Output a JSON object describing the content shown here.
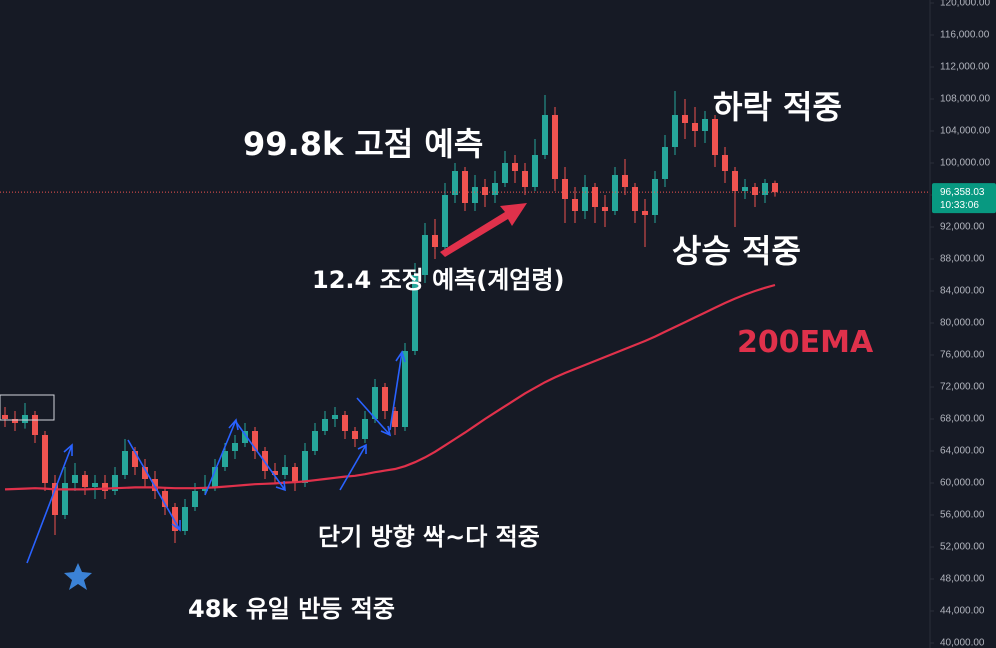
{
  "chart_data": {
    "type": "candlestick",
    "ylim": [
      39375,
      120375
    ],
    "yticks": [
      {
        "value": 40000,
        "label": "40,000.00"
      },
      {
        "value": 44000,
        "label": "44,000.00"
      },
      {
        "value": 48000,
        "label": "48,000.00"
      },
      {
        "value": 52000,
        "label": "52,000.00"
      },
      {
        "value": 56000,
        "label": "56,000.00"
      },
      {
        "value": 60000,
        "label": "60,000.00"
      },
      {
        "value": 64000,
        "label": "64,000.00"
      },
      {
        "value": 68000,
        "label": "68,000.00"
      },
      {
        "value": 72000,
        "label": "72,000.00"
      },
      {
        "value": 76000,
        "label": "76,000.00"
      },
      {
        "value": 80000,
        "label": "80,000.00"
      },
      {
        "value": 84000,
        "label": "84,000.00"
      },
      {
        "value": 88000,
        "label": "88,000.00"
      },
      {
        "value": 92000,
        "label": "92,000.00"
      },
      {
        "value": 96000,
        "label": "96,000.00"
      },
      {
        "value": 100000,
        "label": "100,000.00"
      },
      {
        "value": 104000,
        "label": "104,000.00"
      },
      {
        "value": 108000,
        "label": "108,000.00"
      },
      {
        "value": 112000,
        "label": "112,000.00"
      },
      {
        "value": 116000,
        "label": "116,000.00"
      },
      {
        "value": 120000,
        "label": "120,000.00"
      }
    ],
    "up_color": "#26a69a",
    "down_color": "#ef5350",
    "candles": {
      "open": [
        68500,
        68000,
        67500,
        68500,
        66000,
        60000,
        56000,
        60000,
        61000,
        59500,
        60000,
        59000,
        61000,
        64000,
        62000,
        60500,
        59000,
        57000,
        54000,
        57000,
        59000,
        59500,
        62000,
        64000,
        65000,
        66500,
        64000,
        61500,
        61000,
        62000,
        60000,
        64000,
        66500,
        68000,
        68500,
        66500,
        65500,
        68000,
        72000,
        69000,
        67000,
        76500,
        86000,
        91000,
        89500,
        96000,
        99000,
        95000,
        97000,
        96000,
        97500,
        100000,
        99000,
        97000,
        101000,
        106000,
        98000,
        95500,
        94000,
        97000,
        94500,
        94000,
        98500,
        97000,
        94000,
        93500,
        98000,
        102000,
        106000,
        105000,
        104000,
        105500,
        101000,
        99000,
        96500,
        97000,
        96000,
        97500
      ],
      "high": [
        69500,
        69000,
        70000,
        69000,
        66500,
        61000,
        62000,
        62500,
        61500,
        61000,
        61000,
        62000,
        65500,
        64500,
        63000,
        61500,
        59500,
        57500,
        58000,
        60000,
        61000,
        63000,
        65000,
        66000,
        67500,
        67000,
        64500,
        62500,
        63500,
        62500,
        65000,
        67500,
        69000,
        69500,
        69000,
        67000,
        69000,
        73000,
        72500,
        69500,
        77500,
        87500,
        92500,
        93000,
        97500,
        100000,
        99500,
        98500,
        98000,
        99000,
        101500,
        101000,
        100000,
        103000,
        108500,
        107000,
        99500,
        97000,
        98500,
        97500,
        96000,
        99500,
        100500,
        97500,
        95500,
        99000,
        103500,
        109000,
        108000,
        107000,
        106500,
        106000,
        102000,
        99500,
        98000,
        97500,
        98000,
        97800
      ],
      "low": [
        67000,
        66500,
        66800,
        65000,
        59000,
        53500,
        55500,
        59000,
        58500,
        58000,
        58000,
        58500,
        60500,
        61000,
        59500,
        58000,
        56000,
        52500,
        53500,
        56500,
        58500,
        59000,
        61500,
        63000,
        64500,
        63000,
        60500,
        60000,
        60500,
        59000,
        59500,
        63500,
        66000,
        67000,
        65500,
        64500,
        65000,
        67500,
        68000,
        66000,
        66500,
        76000,
        85000,
        88000,
        89000,
        95000,
        94000,
        94000,
        94500,
        95000,
        97000,
        97500,
        96000,
        96500,
        100500,
        96500,
        92500,
        92500,
        93000,
        92500,
        92000,
        93500,
        96000,
        92500,
        89500,
        92500,
        97000,
        101000,
        103000,
        102000,
        102500,
        99500,
        97500,
        92000,
        95500,
        94500,
        95000,
        95800
      ],
      "close": [
        68000,
        67500,
        68500,
        66000,
        60000,
        56000,
        60000,
        61000,
        59500,
        60000,
        59000,
        61000,
        64000,
        62000,
        60500,
        59000,
        57000,
        54000,
        57000,
        59000,
        59500,
        62000,
        64000,
        65000,
        66500,
        64000,
        61500,
        61000,
        62000,
        60000,
        64000,
        66500,
        68000,
        68500,
        66500,
        65500,
        68000,
        72000,
        69000,
        67000,
        76500,
        86000,
        91000,
        89500,
        96000,
        99000,
        95000,
        97000,
        96000,
        97500,
        100000,
        99000,
        97000,
        101000,
        106000,
        98000,
        95500,
        94000,
        97000,
        94500,
        94000,
        98500,
        97000,
        94000,
        93500,
        98000,
        102000,
        106000,
        105000,
        104000,
        105500,
        101000,
        99000,
        96500,
        97000,
        96000,
        97500,
        96358
      ]
    },
    "ema": {
      "name": "200EMA",
      "color": "#e0314b",
      "values": [
        59200,
        59250,
        59300,
        59350,
        59300,
        59200,
        59200,
        59200,
        59200,
        59250,
        59300,
        59350,
        59400,
        59450,
        59450,
        59450,
        59400,
        59350,
        59350,
        59350,
        59400,
        59450,
        59550,
        59650,
        59750,
        59850,
        59900,
        59950,
        60050,
        60100,
        60200,
        60350,
        60500,
        60650,
        60800,
        60900,
        61100,
        61350,
        61550,
        61750,
        62100,
        62600,
        63200,
        63900,
        64700,
        65500,
        66300,
        67150,
        68000,
        68800,
        69600,
        70400,
        71200,
        71900,
        72600,
        73200,
        73750,
        74250,
        74750,
        75250,
        75750,
        76250,
        76750,
        77250,
        77750,
        78300,
        78900,
        79500,
        80100,
        80700,
        81300,
        81900,
        82500,
        83050,
        83550,
        84000,
        84400,
        84750
      ]
    },
    "last_price": {
      "value": 96358.03,
      "label": "96,358.03"
    },
    "countdown": "10:33:06",
    "annotations": [
      "99.8k 고점 예측",
      "하락 적중",
      "12.4 조정 예측(계엄령)",
      "상승 적중",
      "단기 방향 싹~다 적중",
      "48k 유일 반등 적중"
    ]
  }
}
